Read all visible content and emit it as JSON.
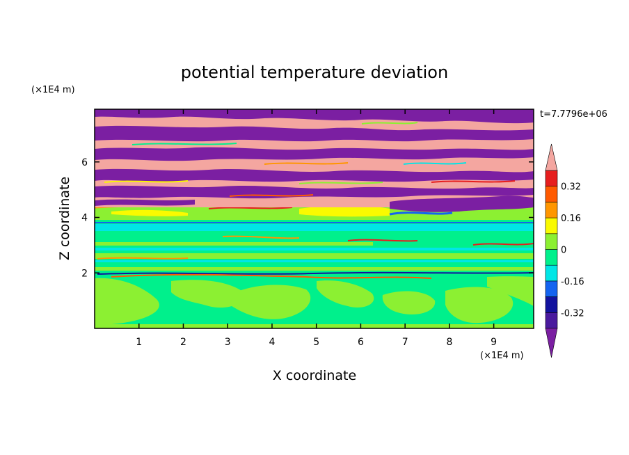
{
  "chart_data": {
    "type": "heatmap",
    "title": "potential temperature deviation",
    "xlabel": "X coordinate",
    "ylabel": "Z coordinate",
    "x_unit": "(×1E4 m)",
    "y_unit": "(×1E4 m)",
    "time_label": "t=7.7796e+06",
    "xlim": [
      0,
      9.9
    ],
    "ylim": [
      0,
      7.9
    ],
    "x_ticks": [
      "1",
      "2",
      "3",
      "4",
      "5",
      "6",
      "7",
      "8",
      "9"
    ],
    "x_tick_values": [
      1,
      2,
      3,
      4,
      5,
      6,
      7,
      8,
      9
    ],
    "y_ticks": [
      "2",
      "4",
      "6"
    ],
    "y_tick_values": [
      2,
      4,
      6
    ],
    "colorbar": {
      "tick_labels": [
        "0.32",
        "0.16",
        "0",
        "-0.16",
        "-0.32"
      ],
      "tick_values": [
        0.32,
        0.16,
        0,
        -0.16,
        -0.32
      ],
      "levels": [
        -0.4,
        -0.32,
        -0.24,
        -0.16,
        -0.08,
        0,
        0.08,
        0.16,
        0.24,
        0.32,
        0.4
      ],
      "colors": [
        "#4a1a9e",
        "#12129e",
        "#1464f0",
        "#00e6e6",
        "#00f08c",
        "#8cf032",
        "#fafa00",
        "#ff9600",
        "#ff5a00",
        "#e61e1e"
      ],
      "under_color": "#7b1fa2",
      "over_color": "#f4a6a0"
    },
    "field_layers_z_top_down": [
      {
        "z": [
          7.6,
          7.9
        ],
        "value": "alternating",
        "note_colors": [
          "#7b1fa2",
          "#f4a6a0"
        ]
      },
      {
        "z": [
          4.3,
          7.6
        ],
        "value": "banded +/-0.4"
      },
      {
        "z": [
          3.8,
          4.3
        ],
        "value": "0 to 0.2"
      },
      {
        "z": [
          2.0,
          3.8
        ],
        "value": "0 to -0.1"
      },
      {
        "z": [
          0.0,
          2.0
        ],
        "value": "0 to 0.08"
      }
    ]
  }
}
